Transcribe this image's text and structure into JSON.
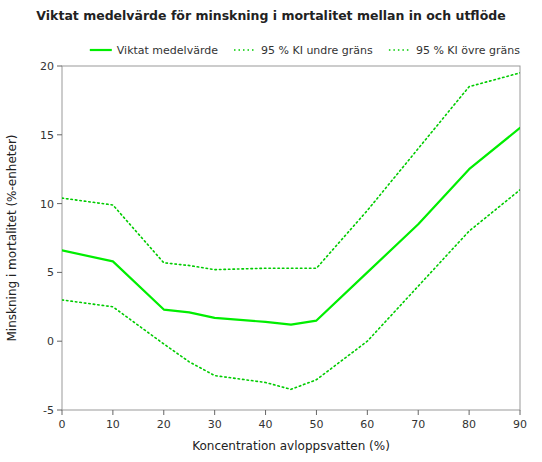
{
  "chart_data": {
    "type": "line",
    "title": "Viktat medelvärde för minskning i mortalitet mellan in och utflöde",
    "xlabel": "Koncentration avloppsvatten (%)",
    "ylabel": "Minskning i mortalitet (%-enheter)",
    "x": [
      0,
      10,
      20,
      25,
      30,
      40,
      45,
      50,
      60,
      70,
      80,
      90
    ],
    "series": [
      {
        "name": "Viktat medelvärde",
        "color": "#00ee00",
        "line_style": "solid",
        "values": [
          6.6,
          5.8,
          2.3,
          2.1,
          1.7,
          1.4,
          1.2,
          1.5,
          5.0,
          8.5,
          12.5,
          15.5
        ]
      },
      {
        "name": "95 % KI undre gräns",
        "color": "#00cc00",
        "line_style": "dotted",
        "values": [
          3.0,
          2.5,
          -0.2,
          -1.5,
          -2.5,
          -3.0,
          -3.5,
          -2.8,
          0.0,
          4.0,
          8.0,
          11.0
        ]
      },
      {
        "name": "95 % KI övre gräns",
        "color": "#00cc00",
        "line_style": "dotted",
        "values": [
          10.4,
          9.9,
          5.7,
          5.5,
          5.2,
          5.3,
          5.3,
          5.3,
          9.5,
          14.0,
          18.5,
          19.5
        ]
      }
    ],
    "xlim": [
      0,
      90
    ],
    "ylim": [
      -5,
      20
    ],
    "xticks": [
      0,
      10,
      20,
      30,
      40,
      50,
      60,
      70,
      80,
      90
    ],
    "yticks": [
      -5,
      0,
      5,
      10,
      15,
      20
    ],
    "grid": false,
    "legend": "upper right"
  }
}
